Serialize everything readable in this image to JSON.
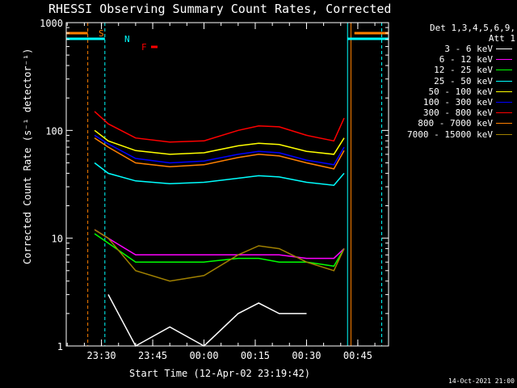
{
  "chart_data": {
    "type": "line",
    "title": "RHESSI Observing Summary Count Rates, Corrected",
    "xlabel": "Start Time (12-Apr-02 23:19:42)",
    "ylabel": "Corrected Count Rate (s⁻¹ detector⁻¹)",
    "ylog": true,
    "ylim": [
      1,
      1000
    ],
    "xlim": [
      "23:19:42",
      "00:54:00"
    ],
    "x_ticks": [
      "23:30",
      "23:45",
      "00:00",
      "00:15",
      "00:30",
      "00:45"
    ],
    "y_ticks": [
      "1",
      "10",
      "100",
      "1000"
    ],
    "legend_header": [
      "Det 1,3,4,5,6,9,",
      "Att 1"
    ],
    "legend_placement": "right",
    "timestamp": "14-Oct-2021 21:00",
    "flags": [
      {
        "label": "S",
        "color": "#ff8000"
      },
      {
        "label": "N",
        "color": "#00ffff"
      },
      {
        "label": "F",
        "color": "#ff0000"
      }
    ],
    "x": [
      "23:28",
      "23:32",
      "23:40",
      "23:50",
      "00:00",
      "00:10",
      "00:16",
      "00:22",
      "00:30",
      "00:38",
      "00:41"
    ],
    "series": [
      {
        "name": "3 - 6 keV",
        "color": "#ffffff",
        "values": [
          null,
          3,
          1,
          1.5,
          1,
          2,
          2.5,
          2,
          2,
          null,
          null
        ]
      },
      {
        "name": "6 - 12 keV",
        "color": "#ff00ff",
        "values": [
          12,
          10,
          7,
          7,
          7,
          7,
          7,
          7,
          6.5,
          6.5,
          8
        ]
      },
      {
        "name": "12 - 25 keV",
        "color": "#00ff00",
        "values": [
          11,
          9,
          6,
          6,
          6,
          6.5,
          6.5,
          6,
          6,
          5.5,
          8
        ]
      },
      {
        "name": "25 - 50 keV",
        "color": "#00ffff",
        "values": [
          50,
          40,
          34,
          32,
          33,
          36,
          38,
          37,
          33,
          31,
          40
        ]
      },
      {
        "name": "50 - 100 keV",
        "color": "#ffff00",
        "values": [
          100,
          80,
          65,
          60,
          62,
          72,
          76,
          74,
          64,
          60,
          85
        ]
      },
      {
        "name": "100 - 300 keV",
        "color": "#0000ff",
        "values": [
          90,
          75,
          55,
          50,
          52,
          60,
          64,
          62,
          53,
          48,
          70
        ]
      },
      {
        "name": "300 - 800 keV",
        "color": "#ff0000",
        "values": [
          150,
          115,
          85,
          78,
          80,
          100,
          110,
          108,
          90,
          80,
          130
        ]
      },
      {
        "name": "800 - 7000 keV",
        "color": "#ff8000",
        "values": [
          85,
          70,
          50,
          46,
          48,
          56,
          60,
          58,
          50,
          44,
          65
        ]
      },
      {
        "name": "7000 - 15000 keV",
        "color": "#a08000",
        "values": [
          12,
          10,
          5,
          4,
          4.5,
          7,
          8.5,
          8,
          6,
          5,
          8
        ]
      }
    ]
  }
}
